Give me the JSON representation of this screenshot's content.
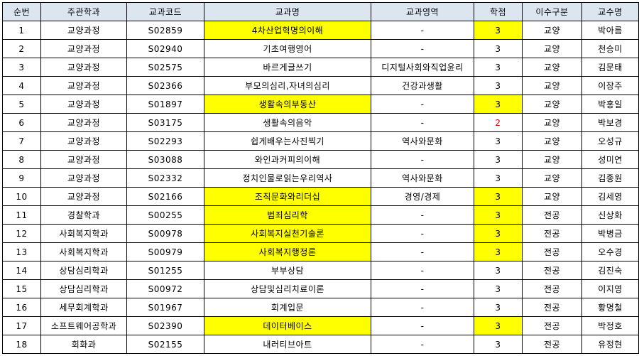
{
  "colors": {
    "header_bg": "#dce6f1",
    "highlight_bg": "#ffff00",
    "red_text": "#cc0000",
    "border": "#000000",
    "text": "#000000"
  },
  "table": {
    "columns": [
      {
        "key": "no",
        "label": "순번"
      },
      {
        "key": "dept",
        "label": "주관학과"
      },
      {
        "key": "code",
        "label": "교과코드"
      },
      {
        "key": "name",
        "label": "교과명"
      },
      {
        "key": "area",
        "label": "교과영역"
      },
      {
        "key": "credits",
        "label": "학점"
      },
      {
        "key": "type",
        "label": "이수구분"
      },
      {
        "key": "prof",
        "label": "교수명"
      }
    ],
    "rows": [
      {
        "no": "1",
        "dept": "교양과정",
        "code": "S02859",
        "name": "4차산업혁명의이해",
        "area": "-",
        "credits": "3",
        "type": "교양",
        "prof": "박아름",
        "name_highlight": true,
        "credits_highlight": true
      },
      {
        "no": "2",
        "dept": "교양과정",
        "code": "S02940",
        "name": "기초여행영어",
        "area": "-",
        "credits": "3",
        "type": "교양",
        "prof": "천승미"
      },
      {
        "no": "3",
        "dept": "교양과정",
        "code": "S02575",
        "name": "바르게글쓰기",
        "area": "디지털사회와직업윤리",
        "credits": "3",
        "type": "교양",
        "prof": "김문태"
      },
      {
        "no": "4",
        "dept": "교양과정",
        "code": "S02366",
        "name": "부모의심리,자녀의심리",
        "area": "건강과생활",
        "credits": "3",
        "type": "교양",
        "prof": "이장주"
      },
      {
        "no": "5",
        "dept": "교양과정",
        "code": "S01897",
        "name": "생활속의부동산",
        "area": "-",
        "credits": "3",
        "type": "교양",
        "prof": "박홍일",
        "name_highlight": true,
        "credits_highlight": true
      },
      {
        "no": "6",
        "dept": "교양과정",
        "code": "S03175",
        "name": "생활속의음악",
        "area": "-",
        "credits": "2",
        "type": "교양",
        "prof": "박보경",
        "credits_red": true
      },
      {
        "no": "7",
        "dept": "교양과정",
        "code": "S02293",
        "name": "쉽게배우는사진찍기",
        "area": "역사와문화",
        "credits": "3",
        "type": "교양",
        "prof": "오성규"
      },
      {
        "no": "8",
        "dept": "교양과정",
        "code": "S03088",
        "name": "와인과커피의이해",
        "area": "-",
        "credits": "3",
        "type": "교양",
        "prof": "성미연"
      },
      {
        "no": "9",
        "dept": "교양과정",
        "code": "S02332",
        "name": "정치인물로읽는우리역사",
        "area": "역사와문화",
        "credits": "3",
        "type": "교양",
        "prof": "김종원"
      },
      {
        "no": "10",
        "dept": "교양과정",
        "code": "S02166",
        "name": "조직문화와리더십",
        "area": "경영/경제",
        "credits": "3",
        "type": "교양",
        "prof": "김세영",
        "name_highlight": true,
        "credits_highlight": true
      },
      {
        "no": "11",
        "dept": "경찰학과",
        "code": "S00255",
        "name": "범죄심리학",
        "area": "-",
        "credits": "3",
        "type": "전공",
        "prof": "신상화",
        "name_highlight": true,
        "credits_highlight": true
      },
      {
        "no": "12",
        "dept": "사회복지학과",
        "code": "S00978",
        "name": "사회복지실천기술론",
        "area": "-",
        "credits": "3",
        "type": "전공",
        "prof": "박병금",
        "name_highlight": true,
        "credits_highlight": true
      },
      {
        "no": "13",
        "dept": "사회복지학과",
        "code": "S00979",
        "name": "사회복지행정론",
        "area": "-",
        "credits": "3",
        "type": "전공",
        "prof": "오수경",
        "name_highlight": true,
        "credits_highlight": true
      },
      {
        "no": "14",
        "dept": "상담심리학과",
        "code": "S01255",
        "name": "부부상담",
        "area": "-",
        "credits": "3",
        "type": "전공",
        "prof": "김진숙"
      },
      {
        "no": "15",
        "dept": "상담심리학과",
        "code": "S00972",
        "name": "상담및심리치료이론",
        "area": "-",
        "credits": "3",
        "type": "전공",
        "prof": "이지영"
      },
      {
        "no": "16",
        "dept": "세무회계학과",
        "code": "S01967",
        "name": "회계입문",
        "area": "-",
        "credits": "3",
        "type": "전공",
        "prof": "황명철"
      },
      {
        "no": "17",
        "dept": "소프트웨어공학과",
        "code": "S02390",
        "name": "데이터베이스",
        "area": "-",
        "credits": "3",
        "type": "전공",
        "prof": "박정호",
        "name_highlight": true,
        "credits_highlight": true
      },
      {
        "no": "18",
        "dept": "회화과",
        "code": "S02155",
        "name": "내러티브아트",
        "area": "-",
        "credits": "3",
        "type": "전공",
        "prof": "유정현"
      }
    ]
  }
}
